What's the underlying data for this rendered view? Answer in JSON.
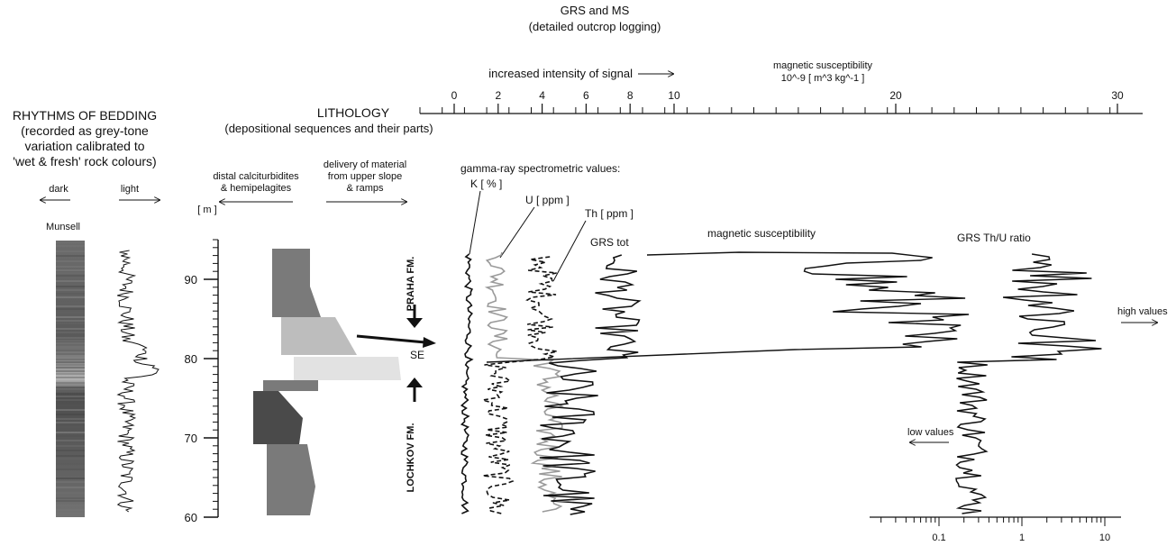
{
  "header": {
    "title": "GRS and MS",
    "subtitle": "(detailed outcrop logging)",
    "signal_label": "increased intensity of signal",
    "ms_title": "magnetic susceptibility",
    "ms_units": "10^-9 [ m^3 kg^-1 ]"
  },
  "top_axis": {
    "ticks": [
      {
        "label": "0",
        "value": 0
      },
      {
        "label": "2",
        "value": 2
      },
      {
        "label": "4",
        "value": 4
      },
      {
        "label": "6",
        "value": 6
      },
      {
        "label": "8",
        "value": 8
      },
      {
        "label": "10",
        "value": 10
      },
      {
        "label": "20",
        "value": 20
      },
      {
        "label": "30",
        "value": 30
      }
    ]
  },
  "rhythms": {
    "title": "RHYTHMS OF BEDDING",
    "line1": "(recorded as grey-tone",
    "line2": "variation calibrated to",
    "line3": "'wet & fresh' rock colours)",
    "dark": "dark",
    "light": "light",
    "munsell": "Munsell"
  },
  "lithology": {
    "title": "LITHOLOGY",
    "subtitle": "(depositional sequences and their parts)",
    "distal_1": "distal calciturbidites",
    "distal_2": "& hemipelagites",
    "delivery_1": "delivery of material",
    "delivery_2": "from upper slope",
    "delivery_3": "& ramps"
  },
  "depth_axis": {
    "unit": "[ m ]",
    "ticks": [
      "60",
      "70",
      "80",
      "90"
    ]
  },
  "formations": {
    "upper": "PRAHA FM.",
    "lower": "LOCHKOV FM.",
    "boundary": "SE"
  },
  "curves": {
    "gamma_title": "gamma-ray spectrometric values:",
    "k": "K [ % ]",
    "u": "U [ ppm ]",
    "th": "Th [ ppm ]",
    "grs_tot": "GRS tot",
    "ms": "magnetic susceptibility",
    "thu": "GRS  Th/U ratio",
    "high": "high values",
    "low": "low values"
  },
  "log_axis": {
    "ticks": [
      "0.1",
      "1",
      "10"
    ]
  },
  "colors": {
    "ink": "#111111",
    "block_dark": "#4a4a4a",
    "block_mid": "#7a7a7a",
    "block_light": "#bdbdbd",
    "block_lightest": "#e2e2e2",
    "u_curve": "#9a9a9a"
  }
}
